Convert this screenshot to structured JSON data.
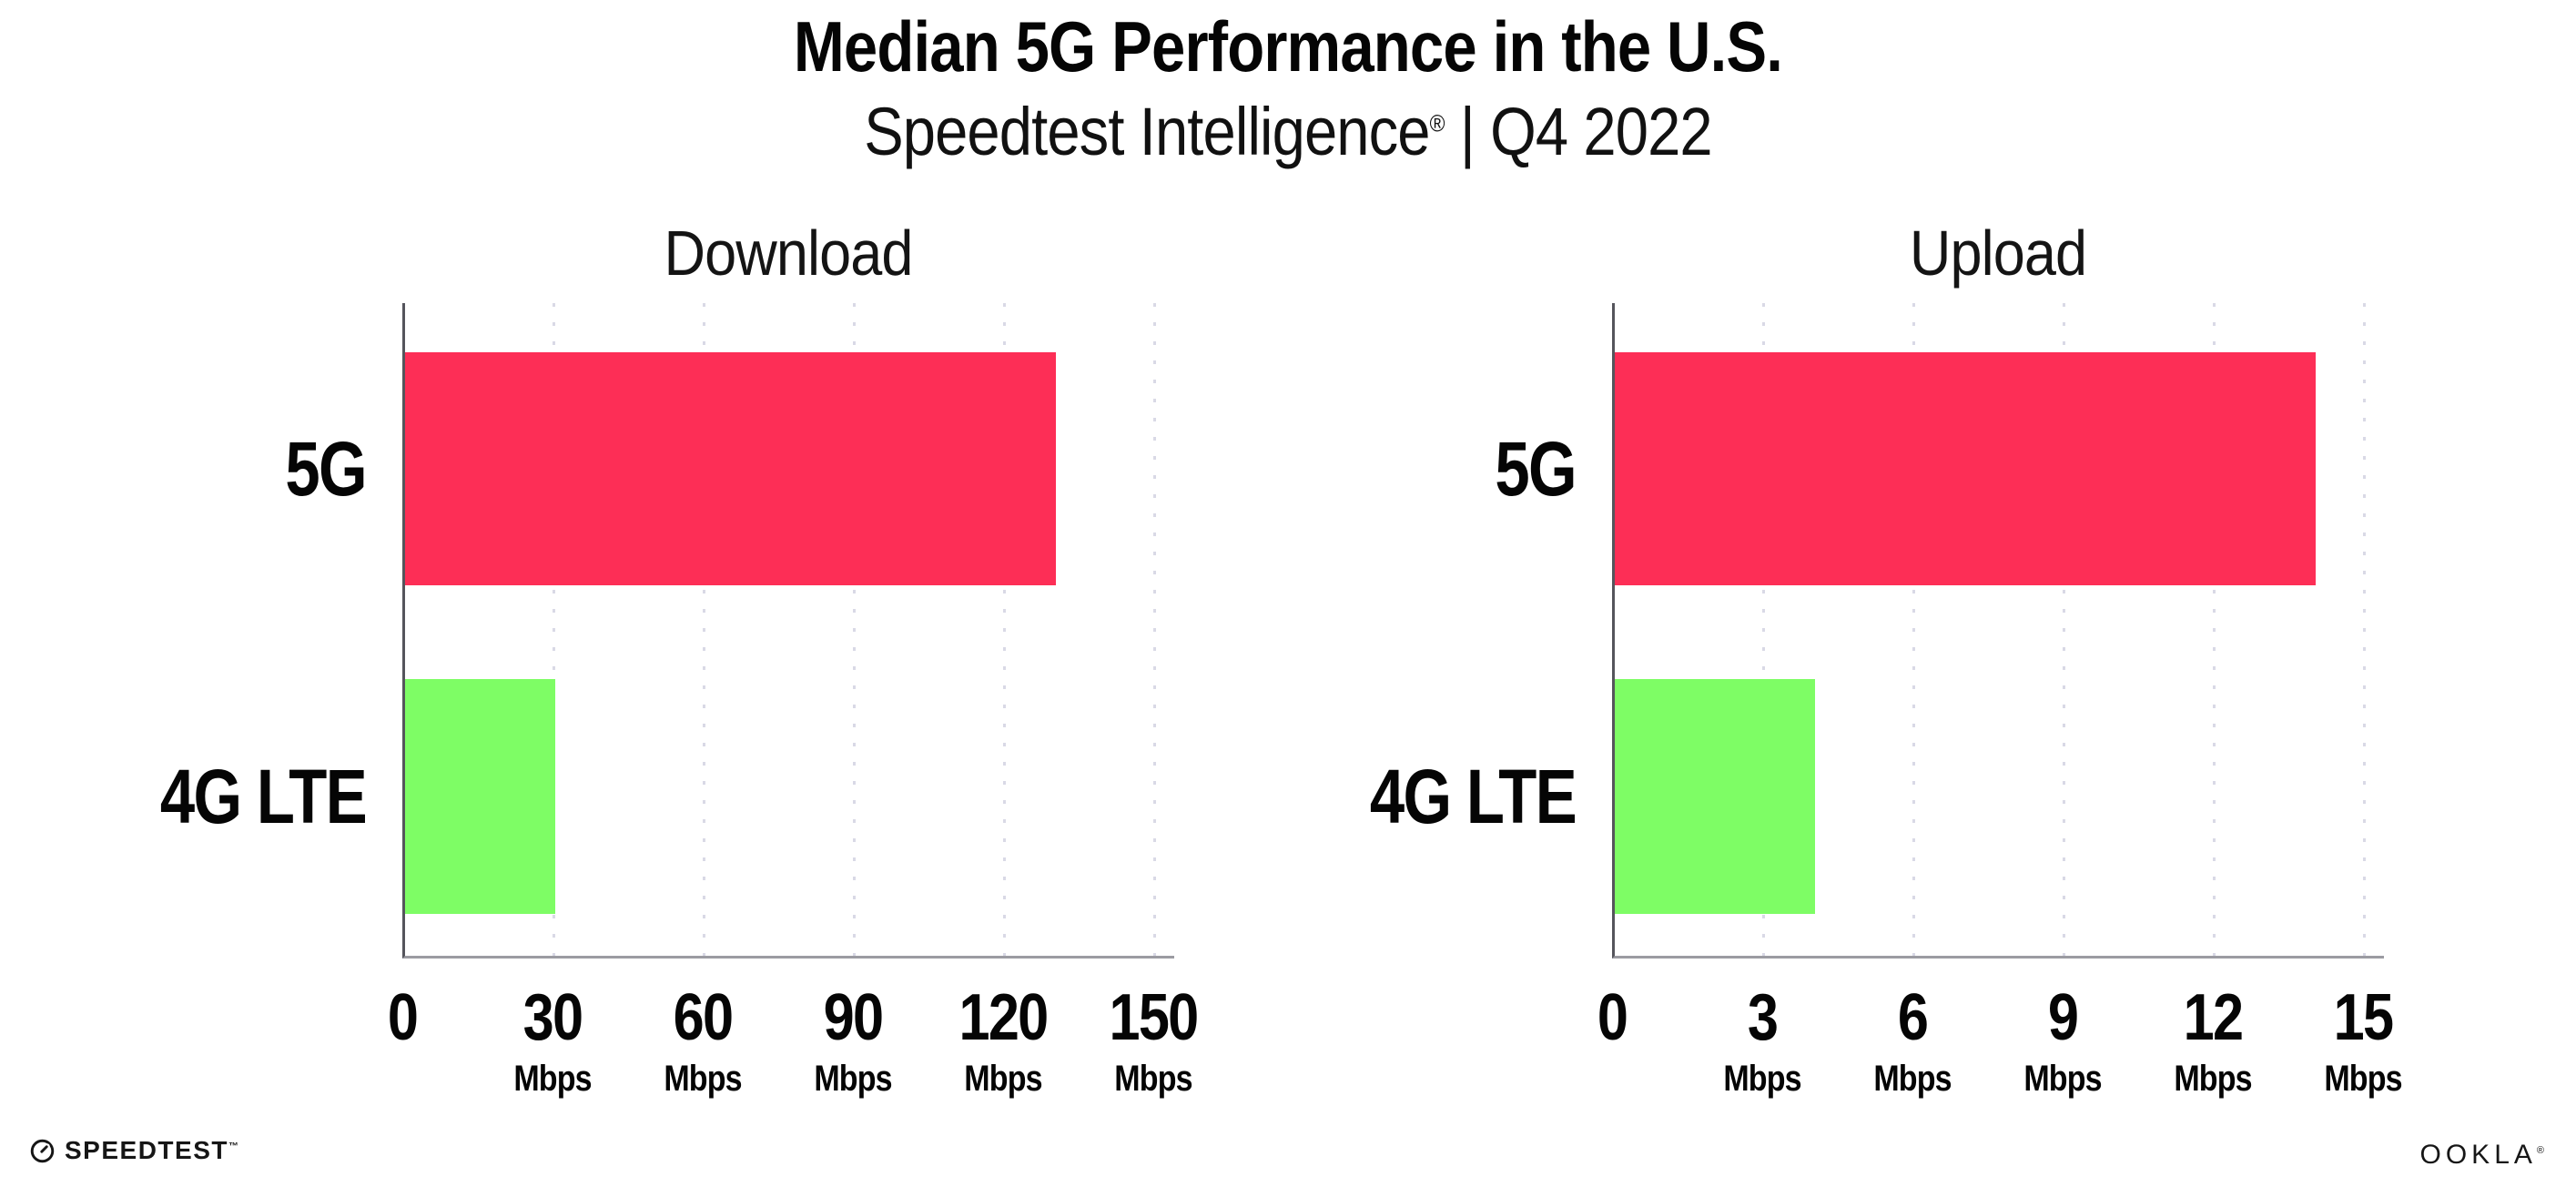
{
  "header": {
    "title": "Median 5G Performance in the U.S.",
    "subtitle_brand": "Speedtest Intelligence",
    "subtitle_reg": "®",
    "subtitle_rest": " | Q4 2022"
  },
  "chart_data": [
    {
      "type": "bar",
      "title": "Download",
      "orientation": "horizontal",
      "categories": [
        "5G",
        "4G LTE"
      ],
      "values": [
        130,
        30
      ],
      "unit": "Mbps",
      "xlim": [
        0,
        150
      ],
      "tick_step": 30,
      "ticks": [
        0,
        30,
        60,
        90,
        120,
        150
      ],
      "tick_labels": [
        {
          "value": "0",
          "unit": ""
        },
        {
          "value": "30",
          "unit": "Mbps"
        },
        {
          "value": "60",
          "unit": "Mbps"
        },
        {
          "value": "90",
          "unit": "Mbps"
        },
        {
          "value": "120",
          "unit": "Mbps"
        },
        {
          "value": "150",
          "unit": "Mbps"
        }
      ],
      "bar_colors": [
        "#FD2E56",
        "#7EFD65"
      ],
      "grid": "dotted-vertical",
      "legend": "none"
    },
    {
      "type": "bar",
      "title": "Upload",
      "orientation": "horizontal",
      "categories": [
        "5G",
        "4G LTE"
      ],
      "values": [
        14,
        4
      ],
      "unit": "Mbps",
      "xlim": [
        0,
        15
      ],
      "tick_step": 3,
      "ticks": [
        0,
        3,
        6,
        9,
        12,
        15
      ],
      "tick_labels": [
        {
          "value": "0",
          "unit": ""
        },
        {
          "value": "3",
          "unit": "Mbps"
        },
        {
          "value": "6",
          "unit": "Mbps"
        },
        {
          "value": "9",
          "unit": "Mbps"
        },
        {
          "value": "12",
          "unit": "Mbps"
        },
        {
          "value": "15",
          "unit": "Mbps"
        }
      ],
      "bar_colors": [
        "#FD2E56",
        "#7EFD65"
      ],
      "grid": "dotted-vertical",
      "legend": "none"
    }
  ],
  "footer": {
    "speedtest_label": "SPEEDTEST",
    "speedtest_tm": "™",
    "ookla_label": "OOKLA",
    "ookla_reg": "®"
  },
  "colors": {
    "bar_5g": "#FD2E56",
    "bar_4g_lte": "#7EFD65",
    "gridline": "#D9D9E6",
    "x_axis": "#9B9BA2",
    "y_axis": "#55555C",
    "text": "#050505",
    "background": "#FFFFFF"
  }
}
